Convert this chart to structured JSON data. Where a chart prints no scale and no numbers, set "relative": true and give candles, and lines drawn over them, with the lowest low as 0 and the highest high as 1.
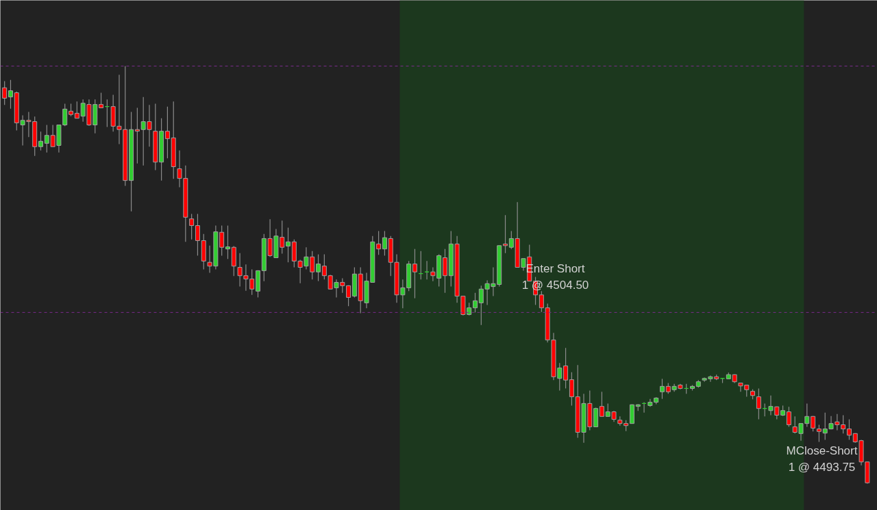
{
  "chart_data": {
    "type": "candlestick",
    "relative": true,
    "tick_labels": false,
    "categories": [
      null,
      null,
      null,
      null,
      null,
      null,
      null,
      null,
      null,
      null,
      null,
      null,
      null,
      null,
      null,
      null,
      null,
      null,
      null,
      null,
      null,
      null,
      null,
      null,
      null,
      null,
      null,
      null,
      null,
      null,
      null,
      null,
      null,
      null,
      null,
      null,
      null,
      null,
      null,
      null,
      null,
      null,
      null,
      null,
      null,
      null,
      null,
      null,
      null,
      null,
      null,
      null,
      null,
      null,
      null,
      null,
      null,
      null,
      null,
      null,
      null,
      null,
      null,
      null,
      null,
      null,
      null,
      null,
      null,
      null,
      null,
      null,
      null,
      null,
      null,
      null,
      null,
      null,
      null,
      null,
      null,
      null,
      null,
      null,
      null,
      null,
      null,
      null,
      null,
      null,
      null,
      null,
      null,
      null,
      null,
      null,
      null,
      null,
      null,
      null,
      null,
      null,
      null,
      null,
      null,
      null,
      null,
      null,
      null,
      null,
      null,
      null,
      null,
      null,
      null,
      null,
      null,
      null,
      null,
      null,
      null,
      null,
      null,
      null,
      null,
      null,
      null,
      null,
      null,
      null,
      null,
      null,
      null,
      null,
      null,
      null,
      null,
      null,
      null,
      null,
      null,
      null,
      null,
      null
    ],
    "ohlc": [
      [
        0.948,
        0.964,
        0.907,
        0.923
      ],
      [
        0.926,
        0.967,
        0.898,
        0.941
      ],
      [
        0.936,
        0.939,
        0.846,
        0.864
      ],
      [
        0.859,
        0.882,
        0.81,
        0.87
      ],
      [
        0.87,
        0.89,
        0.83,
        0.867
      ],
      [
        0.867,
        0.879,
        0.785,
        0.807
      ],
      [
        0.807,
        0.843,
        0.798,
        0.82
      ],
      [
        0.815,
        0.859,
        0.793,
        0.834
      ],
      [
        0.834,
        0.859,
        0.807,
        0.807
      ],
      [
        0.81,
        0.859,
        0.793,
        0.859
      ],
      [
        0.859,
        0.91,
        0.856,
        0.897
      ],
      [
        0.892,
        0.91,
        0.88,
        0.884
      ],
      [
        0.887,
        0.915,
        0.875,
        0.875
      ],
      [
        0.88,
        0.92,
        0.867,
        0.911
      ],
      [
        0.908,
        0.92,
        0.857,
        0.859
      ],
      [
        0.859,
        0.92,
        0.839,
        0.908
      ],
      [
        0.908,
        0.936,
        0.9,
        0.9
      ],
      [
        0.903,
        0.92,
        0.854,
        0.903
      ],
      [
        0.903,
        0.931,
        0.843,
        0.856
      ],
      [
        0.856,
        0.979,
        0.813,
        0.848
      ],
      [
        0.848,
        1.0,
        0.713,
        0.726
      ],
      [
        0.726,
        0.89,
        0.652,
        0.848
      ],
      [
        0.848,
        0.9,
        0.767,
        0.844
      ],
      [
        0.848,
        0.926,
        0.762,
        0.867
      ],
      [
        0.867,
        0.907,
        0.807,
        0.848
      ],
      [
        0.844,
        0.91,
        0.751,
        0.77
      ],
      [
        0.77,
        0.875,
        0.726,
        0.844
      ],
      [
        0.844,
        0.903,
        0.779,
        0.826
      ],
      [
        0.828,
        0.915,
        0.73,
        0.759
      ],
      [
        0.754,
        0.798,
        0.71,
        0.731
      ],
      [
        0.731,
        0.762,
        0.579,
        0.638
      ],
      [
        0.634,
        0.646,
        0.585,
        0.618
      ],
      [
        0.618,
        0.646,
        0.546,
        0.582
      ],
      [
        0.582,
        0.598,
        0.513,
        0.533
      ],
      [
        0.53,
        0.57,
        0.505,
        0.521
      ],
      [
        0.521,
        0.618,
        0.513,
        0.603
      ],
      [
        0.602,
        0.618,
        0.546,
        0.566
      ],
      [
        0.562,
        0.618,
        0.538,
        0.567
      ],
      [
        0.566,
        0.569,
        0.497,
        0.521
      ],
      [
        0.518,
        0.552,
        0.472,
        0.498
      ],
      [
        0.498,
        0.525,
        0.462,
        0.49
      ],
      [
        0.49,
        0.513,
        0.452,
        0.466
      ],
      [
        0.461,
        0.511,
        0.446,
        0.51
      ],
      [
        0.51,
        0.598,
        0.485,
        0.587
      ],
      [
        0.587,
        0.633,
        0.543,
        0.546
      ],
      [
        0.541,
        0.61,
        0.541,
        0.593
      ],
      [
        0.59,
        0.63,
        0.551,
        0.566
      ],
      [
        0.569,
        0.613,
        0.53,
        0.579
      ],
      [
        0.579,
        0.585,
        0.518,
        0.533
      ],
      [
        0.533,
        0.536,
        0.48,
        0.518
      ],
      [
        0.521,
        0.566,
        0.513,
        0.543
      ],
      [
        0.543,
        0.557,
        0.489,
        0.507
      ],
      [
        0.507,
        0.549,
        0.485,
        0.526
      ],
      [
        0.521,
        0.549,
        0.489,
        0.498
      ],
      [
        0.498,
        0.5,
        0.466,
        0.466
      ],
      [
        0.469,
        0.489,
        0.446,
        0.482
      ],
      [
        0.482,
        0.492,
        0.457,
        0.474
      ],
      [
        0.474,
        0.475,
        0.425,
        0.446
      ],
      [
        0.449,
        0.518,
        0.446,
        0.502
      ],
      [
        0.502,
        0.518,
        0.408,
        0.438
      ],
      [
        0.433,
        0.505,
        0.42,
        0.485
      ],
      [
        0.482,
        0.593,
        0.482,
        0.579
      ],
      [
        0.574,
        0.605,
        0.548,
        0.562
      ],
      [
        0.562,
        0.605,
        0.546,
        0.589
      ],
      [
        0.587,
        0.593,
        0.497,
        0.53
      ],
      [
        0.53,
        0.549,
        0.433,
        0.452
      ],
      [
        0.452,
        0.489,
        0.42,
        0.469
      ],
      [
        0.469,
        0.533,
        0.461,
        0.526
      ],
      [
        0.526,
        0.562,
        0.444,
        0.507
      ],
      [
        0.503,
        0.557,
        0.489,
        0.503
      ],
      [
        0.507,
        0.533,
        0.489,
        0.507
      ],
      [
        0.507,
        0.518,
        0.485,
        0.498
      ],
      [
        0.492,
        0.549,
        0.472,
        0.546
      ],
      [
        0.541,
        0.562,
        0.457,
        0.498
      ],
      [
        0.498,
        0.605,
        0.472,
        0.574
      ],
      [
        0.574,
        0.593,
        0.433,
        0.449
      ],
      [
        0.449,
        0.449,
        0.403,
        0.405
      ],
      [
        0.405,
        0.433,
        0.403,
        0.421
      ],
      [
        0.421,
        0.457,
        0.41,
        0.438
      ],
      [
        0.433,
        0.474,
        0.38,
        0.466
      ],
      [
        0.466,
        0.487,
        0.428,
        0.479
      ],
      [
        0.472,
        0.518,
        0.449,
        0.479
      ],
      [
        0.477,
        0.57,
        0.472,
        0.57
      ],
      [
        0.574,
        0.643,
        0.552,
        0.57
      ],
      [
        0.566,
        0.605,
        0.562,
        0.587
      ],
      [
        0.587,
        0.674,
        0.518,
        0.518
      ],
      [
        0.518,
        0.539,
        0.51,
        0.539
      ],
      [
        0.543,
        0.572,
        0.485,
        0.485
      ],
      [
        0.485,
        0.495,
        0.428,
        0.452
      ],
      [
        0.452,
        0.461,
        0.411,
        0.421
      ],
      [
        0.421,
        0.431,
        0.338,
        0.344
      ],
      [
        0.344,
        0.361,
        0.248,
        0.256
      ],
      [
        0.252,
        0.289,
        0.223,
        0.277
      ],
      [
        0.282,
        0.325,
        0.228,
        0.248
      ],
      [
        0.249,
        0.267,
        0.187,
        0.208
      ],
      [
        0.208,
        0.284,
        0.11,
        0.123
      ],
      [
        0.123,
        0.215,
        0.098,
        0.192
      ],
      [
        0.192,
        0.223,
        0.128,
        0.136
      ],
      [
        0.136,
        0.182,
        0.136,
        0.18
      ],
      [
        0.185,
        0.22,
        0.161,
        0.161
      ],
      [
        0.161,
        0.192,
        0.161,
        0.172
      ],
      [
        0.172,
        0.174,
        0.148,
        0.154
      ],
      [
        0.152,
        0.161,
        0.139,
        0.144
      ],
      [
        0.144,
        0.152,
        0.126,
        0.139
      ],
      [
        0.144,
        0.19,
        0.144,
        0.189
      ],
      [
        0.185,
        0.19,
        0.174,
        0.189
      ],
      [
        0.192,
        0.195,
        0.17,
        0.192
      ],
      [
        0.187,
        0.203,
        0.184,
        0.195
      ],
      [
        0.195,
        0.207,
        0.19,
        0.205
      ],
      [
        0.22,
        0.251,
        0.203,
        0.233
      ],
      [
        0.233,
        0.241,
        0.215,
        0.22
      ],
      [
        0.225,
        0.239,
        0.22,
        0.233
      ],
      [
        0.236,
        0.239,
        0.226,
        0.228
      ],
      [
        0.228,
        0.239,
        0.215,
        0.228
      ],
      [
        0.228,
        0.236,
        0.223,
        0.233
      ],
      [
        0.233,
        0.248,
        0.23,
        0.244
      ],
      [
        0.248,
        0.254,
        0.244,
        0.252
      ],
      [
        0.251,
        0.259,
        0.244,
        0.256
      ],
      [
        0.256,
        0.261,
        0.248,
        0.251
      ],
      [
        0.252,
        0.252,
        0.241,
        0.252
      ],
      [
        0.251,
        0.266,
        0.251,
        0.261
      ],
      [
        0.261,
        0.262,
        0.241,
        0.244
      ],
      [
        0.241,
        0.241,
        0.22,
        0.234
      ],
      [
        0.236,
        0.236,
        0.208,
        0.225
      ],
      [
        0.221,
        0.226,
        0.202,
        0.211
      ],
      [
        0.208,
        0.228,
        0.154,
        0.18
      ],
      [
        0.18,
        0.192,
        0.161,
        0.18
      ],
      [
        0.175,
        0.211,
        0.164,
        0.185
      ],
      [
        0.184,
        0.185,
        0.154,
        0.164
      ],
      [
        0.164,
        0.187,
        0.162,
        0.175
      ],
      [
        0.172,
        0.184,
        0.136,
        0.141
      ],
      [
        0.136,
        0.161,
        0.12,
        0.123
      ],
      [
        0.12,
        0.144,
        0.103,
        0.144
      ],
      [
        0.144,
        0.192,
        0.136,
        0.161
      ],
      [
        0.161,
        0.162,
        0.125,
        0.133
      ],
      [
        0.131,
        0.141,
        0.1,
        0.125
      ],
      [
        0.121,
        0.17,
        0.105,
        0.131
      ],
      [
        0.131,
        0.162,
        0.13,
        0.144
      ],
      [
        0.148,
        0.167,
        0.128,
        0.141
      ],
      [
        0.141,
        0.164,
        0.12,
        0.131
      ],
      [
        0.131,
        0.154,
        0.105,
        0.116
      ],
      [
        0.12,
        0.121,
        0.098,
        0.1
      ],
      [
        0.103,
        0.105,
        0.044,
        0.052
      ],
      [
        0.052,
        0.052,
        0.0,
        0.002
      ]
    ],
    "colors": [
      "#ff0000",
      "#32cd32",
      "#ff0000",
      "#32cd32",
      "#ff0000",
      "#ff0000",
      "#32cd32",
      "#32cd32",
      "#ff0000",
      "#32cd32",
      "#32cd32",
      "#ff0000",
      "#ff0000",
      "#32cd32",
      "#ff0000",
      "#32cd32",
      "#ff0000",
      "#32cd32",
      "#ff0000",
      "#ff0000",
      "#ff0000",
      "#32cd32",
      "#ff0000",
      "#32cd32",
      "#ff0000",
      "#ff0000",
      "#32cd32",
      "#ff0000",
      "#ff0000",
      "#ff0000",
      "#ff0000",
      "#ff0000",
      "#ff0000",
      "#ff0000",
      "#ff0000",
      "#32cd32",
      "#ff0000",
      "#32cd32",
      "#ff0000",
      "#ff0000",
      "#ff0000",
      "#ff0000",
      "#32cd32",
      "#32cd32",
      "#ff0000",
      "#32cd32",
      "#ff0000",
      "#32cd32",
      "#ff0000",
      "#ff0000",
      "#32cd32",
      "#ff0000",
      "#32cd32",
      "#ff0000",
      "#ff0000",
      "#32cd32",
      "#ff0000",
      "#ff0000",
      "#32cd32",
      "#ff0000",
      "#32cd32",
      "#32cd32",
      "#ff0000",
      "#32cd32",
      "#ff0000",
      "#ff0000",
      "#32cd32",
      "#32cd32",
      "#ff0000",
      "#32cd32",
      "#32cd32",
      "#ff0000",
      "#32cd32",
      "#ff0000",
      "#32cd32",
      "#ff0000",
      "#ff0000",
      "#32cd32",
      "#32cd32",
      "#32cd32",
      "#32cd32",
      "#32cd32",
      "#32cd32",
      "#ff0000",
      "#32cd32",
      "#ff0000",
      "#32cd32",
      "#ff0000",
      "#ff0000",
      "#ff0000",
      "#ff0000",
      "#ff0000",
      "#32cd32",
      "#ff0000",
      "#ff0000",
      "#ff0000",
      "#32cd32",
      "#ff0000",
      "#32cd32",
      "#ff0000",
      "#32cd32",
      "#ff0000",
      "#ff0000",
      "#ff0000",
      "#32cd32",
      "#32cd32",
      "#32cd32",
      "#32cd32",
      "#32cd32",
      "#32cd32",
      "#ff0000",
      "#32cd32",
      "#ff0000",
      "#32cd32",
      "#32cd32",
      "#32cd32",
      "#32cd32",
      "#32cd32",
      "#ff0000",
      "#32cd32",
      "#32cd32",
      "#ff0000",
      "#ff0000",
      "#ff0000",
      "#ff0000",
      "#ff0000",
      "#32cd32",
      "#32cd32",
      "#ff0000",
      "#32cd32",
      "#ff0000",
      "#ff0000",
      "#32cd32",
      "#32cd32",
      "#ff0000",
      "#ff0000",
      "#32cd32",
      "#32cd32",
      "#ff0000",
      "#ff0000",
      "#ff0000",
      "#ff0000",
      "#ff0000",
      "#ff0000"
    ],
    "ref_lines": [
      {
        "axis": "y",
        "value": 1.0,
        "color": "#7a2a8c",
        "line_style": "dashed"
      },
      {
        "axis": "y",
        "value": 0.41,
        "color": "#7a2a8c",
        "line_style": "dashed"
      }
    ],
    "annotations": [
      "Enter Short\n1 @ 4504.50",
      "MClose-Short\n1 @ 4493.75"
    ]
  }
}
